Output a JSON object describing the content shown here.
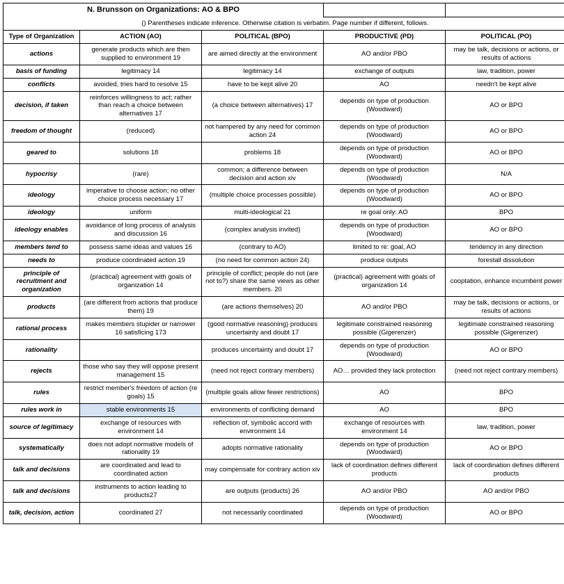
{
  "title": "N. Brunsson on Organizations: AO & BPO",
  "note": "() Parentheses indicate inference. Otherwise citation is verbatim. Page number if different, follows.",
  "headers": {
    "c0": "Type of Organization",
    "c1": "ACTION  (AO)",
    "c2": "POLITICAL (BPO)",
    "c3": "PRODUCTIVE (PD)",
    "c4": "POLITICAL (PO)"
  },
  "rows": [
    {
      "label": "actions",
      "c1": "generate products which are then supplied to environment 19",
      "c2": "are aimed directly at the environment",
      "c3": "AO and/or PBO",
      "c4": "may be talk, decisions or actions, or results of actions"
    },
    {
      "label": "basis of funding",
      "c1": "legitimacy 14",
      "c2": "legitimacy 14",
      "c3": "exchange of outputs",
      "c4": "law, tradition, power"
    },
    {
      "label": "conflicts",
      "c1": "avoided, tries hard to resolve 15",
      "c2": "have to be kept alive 20",
      "c3": "AO",
      "c4": "needn't be kept alive"
    },
    {
      "label": "decision, if taken",
      "c1": "reinforces willingness to act; rather than reach a choice between alternatives 17",
      "c2": "(a choice between alternatives) 17",
      "c3": "depends on type of production (Woodward)",
      "c4": "AO or BPO"
    },
    {
      "label": "freedom of thought",
      "c1": "(reduced)",
      "c2": "not hampered by any need for common action 24",
      "c3": "depends on type of production (Woodward)",
      "c4": "AO or BPO"
    },
    {
      "label": "geared to",
      "c1": "solutions 18",
      "c2": "problems 18",
      "c3": "depends on type of production (Woodward)",
      "c4": "AO or BPO"
    },
    {
      "label": "hypocrisy",
      "c1": "(rare)",
      "c2": "common; a difference between decision and action xiv",
      "c3": "depends on type of production (Woodward)",
      "c4": "N/A"
    },
    {
      "label": "ideology",
      "c1": "imperative to choose action; no other choice process necessary 17",
      "c2": "(multiple choice processes possible)",
      "c3": "depends on type of production (Woodward)",
      "c4": "AO or BPO"
    },
    {
      "label": "ideology",
      "c1": "uniform",
      "c2": "multi-ideological 21",
      "c3": "re goal only: AO",
      "c4": "BPO"
    },
    {
      "label": "ideology enables",
      "c1": "avoidance of long process of analysis and discussion 16",
      "c2": "(complex analysis invited)",
      "c3": "depends on type of production (Woodward)",
      "c4": "AO or BPO"
    },
    {
      "label": "members tend to",
      "c1": "possess same ideas and values 16",
      "c2": "(contrary to AO)",
      "c3": "limited to re: goal, AO",
      "c4": "tendency in any direction"
    },
    {
      "label": "needs to",
      "c1": "produce coordinated action 19",
      "c2": "(no need for common action 24)",
      "c3": "produce outputs",
      "c4": "forestall dissolution"
    },
    {
      "label": "principle of recruitment and organization",
      "c1": "(practical) agreement with goals of organization 14",
      "c2": "principle of conflict;  people do not (are not to?) share the same views as other members. 20",
      "c3": "(practical) agreement with goals of organization 14",
      "c4": "cooptation, enhance incumbent power"
    },
    {
      "label": "products",
      "c1": "(are  different from actions that produce them) 19",
      "c2": "(are actions themselves) 20",
      "c3": "AO and/or PBO",
      "c4": "may be talk, decisions or actions, or results of actions"
    },
    {
      "label": "rational process",
      "c1": "makes members stupider or narrower 16 satisficing 173",
      "c2": "(good normative reasoning) produces uncertainty and doubt 17",
      "c3": "legitimate constrained reasoning possible (Gigerenzer)",
      "c4": "legitimate constrained reasoning possible (Gigerenzer)"
    },
    {
      "label": "rationality",
      "c1": "",
      "c2": "produces uncertainty and doubt 17",
      "c3": "depends on type of production (Woodward)",
      "c4": "AO or BPO"
    },
    {
      "label": "rejects",
      "c1": "those who say they will oppose present management 15",
      "c2": "(need not reject contrary members)",
      "c3": "AO… provided they lack protection",
      "c4": "(need not reject contrary members)"
    },
    {
      "label": "rules",
      "c1": "restrict member's freedom of action (re goals) 15",
      "c2": "(multiple goals allow fewer restrictions)",
      "c3": "AO",
      "c4": "BPO"
    },
    {
      "label": "rules work in",
      "c1": "stable environments 15",
      "c1_class": "highlight",
      "c2": "environments of conflicting demand",
      "c3": "AO",
      "c4": "BPO"
    },
    {
      "label": "source of legitimacy",
      "c1": "exchange of resources with environment 14",
      "c2": "reflection of, symbolic accord with environment 14",
      "c3": "exchange of resources with environment 14",
      "c4": "law, tradition, power"
    },
    {
      "label": "systematically",
      "c1": "does not adopt normative models of rationality 19",
      "c2": "adopts normative rationality",
      "c3": "depends on type of production (Woodward)",
      "c4": "AO or BPO"
    },
    {
      "label": "talk and decisions",
      "c1": "are coordinated and lead to coordinated action",
      "c2": "may compensate for contrary action xiv",
      "c3": "lack of coordination defines different products",
      "c4": "lack of coordination defines different products"
    },
    {
      "label": "talk and decisions",
      "c1": "instruments to action leading to products27",
      "c2": "are outputs (products) 26",
      "c3": "AO and/or PBO",
      "c4": "AO and/or PBO"
    },
    {
      "label": "talk, decision, action",
      "c1": "coordinated  27",
      "c2": "not necessarily coordinated",
      "c3": "depends on type of production (Woodward)",
      "c4": "AO or BPO"
    }
  ]
}
